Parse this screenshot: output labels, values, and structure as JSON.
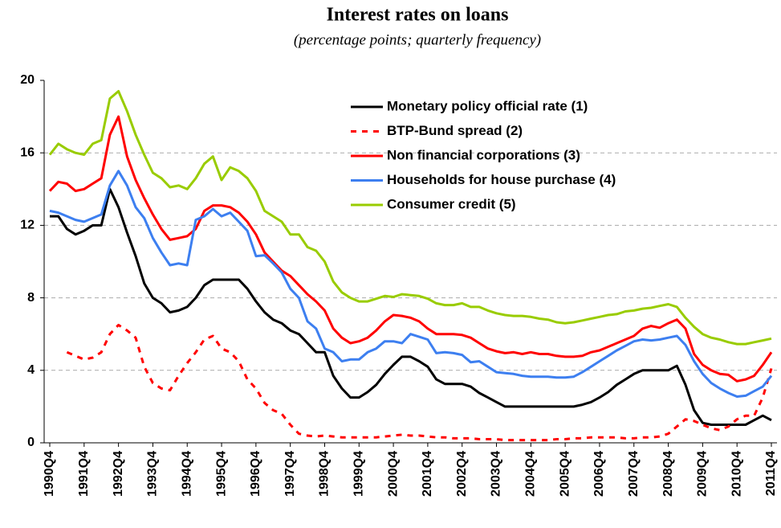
{
  "chart_data": {
    "type": "line",
    "title": "Interest rates on loans",
    "subtitle": "(percentage points; quarterly frequency)",
    "categories": [
      "1990Q4",
      null,
      null,
      null,
      "1991Q4",
      null,
      null,
      null,
      "1992Q4",
      null,
      null,
      null,
      "1993Q4",
      null,
      null,
      null,
      "1994Q4",
      null,
      null,
      null,
      "1995Q4",
      null,
      null,
      null,
      "1996Q4",
      null,
      null,
      null,
      "1997Q4",
      null,
      null,
      null,
      "1998Q4",
      null,
      null,
      null,
      "1999Q4",
      null,
      null,
      null,
      "2000Q4",
      null,
      null,
      null,
      "2001Q4",
      null,
      null,
      null,
      "2002Q4",
      null,
      null,
      null,
      "2003Q4",
      null,
      null,
      null,
      "2004Q4",
      null,
      null,
      null,
      "2005Q4",
      null,
      null,
      null,
      "2006Q4",
      null,
      null,
      null,
      "2007Q4",
      null,
      null,
      null,
      "2008Q4",
      null,
      null,
      null,
      "2009Q4",
      null,
      null,
      null,
      "2010Q4",
      null,
      null,
      null,
      "2011Q4"
    ],
    "series": [
      {
        "name": "Monetary policy official rate (1)",
        "color": "#000000",
        "dash": false,
        "values": [
          12.5,
          12.5,
          11.8,
          11.5,
          11.7,
          12,
          12,
          14,
          13,
          11.6,
          10.3,
          8.8,
          8,
          7.7,
          7.2,
          7.3,
          7.5,
          8,
          8.7,
          9,
          9,
          9,
          9,
          8.5,
          7.8,
          7.2,
          6.8,
          6.6,
          6.2,
          6,
          5.5,
          5,
          5,
          3.7,
          3,
          2.5,
          2.5,
          2.8,
          3.2,
          3.8,
          4.3,
          4.75,
          4.75,
          4.5,
          4.2,
          3.5,
          3.25,
          3.25,
          3.25,
          3.1,
          2.75,
          2.5,
          2.25,
          2,
          2,
          2,
          2,
          2,
          2,
          2,
          2,
          2,
          2.1,
          2.25,
          2.5,
          2.8,
          3.2,
          3.5,
          3.8,
          4,
          4,
          4,
          4,
          4.25,
          3.2,
          1.8,
          1.1,
          1,
          1,
          1,
          1,
          1,
          1.25,
          1.5,
          1.25
        ]
      },
      {
        "name": "BTP-Bund spread (2)",
        "color": "#ff0000",
        "dash": true,
        "values": [
          null,
          null,
          5.0,
          4.8,
          4.6,
          4.7,
          5.0,
          6.0,
          6.5,
          6.2,
          5.8,
          4.2,
          3.3,
          3.0,
          2.9,
          3.7,
          4.4,
          5.0,
          5.7,
          5.9,
          5.2,
          5.0,
          4.5,
          3.5,
          3.0,
          2.2,
          1.8,
          1.6,
          1.0,
          0.5,
          0.4,
          0.35,
          0.4,
          0.35,
          0.3,
          0.3,
          0.3,
          0.3,
          0.3,
          0.35,
          0.4,
          0.45,
          0.4,
          0.4,
          0.35,
          0.3,
          0.3,
          0.25,
          0.25,
          0.25,
          0.2,
          0.2,
          0.2,
          0.15,
          0.15,
          0.15,
          0.15,
          0.15,
          0.15,
          0.2,
          0.2,
          0.25,
          0.25,
          0.3,
          0.3,
          0.3,
          0.3,
          0.25,
          0.25,
          0.3,
          0.3,
          0.35,
          0.5,
          0.9,
          1.3,
          1.2,
          1.0,
          0.8,
          0.7,
          0.9,
          1.3,
          1.5,
          1.5,
          2.5,
          4.1
        ]
      },
      {
        "name": "Non financial corporations (3)",
        "color": "#ff0000",
        "dash": false,
        "values": [
          13.9,
          14.4,
          14.3,
          13.9,
          14,
          14.3,
          14.6,
          17,
          18,
          15.8,
          14.5,
          13.5,
          12.6,
          11.8,
          11.2,
          11.3,
          11.4,
          11.8,
          12.8,
          13.1,
          13.1,
          13,
          12.7,
          12.2,
          11.5,
          10.5,
          10,
          9.5,
          9.2,
          8.7,
          8.2,
          7.8,
          7.3,
          6.3,
          5.8,
          5.5,
          5.6,
          5.8,
          6.2,
          6.7,
          7.05,
          7,
          6.9,
          6.7,
          6.3,
          6,
          6,
          6,
          5.95,
          5.8,
          5.5,
          5.2,
          5.05,
          4.95,
          5,
          4.9,
          5,
          4.9,
          4.9,
          4.8,
          4.75,
          4.75,
          4.8,
          5,
          5.1,
          5.3,
          5.5,
          5.7,
          5.9,
          6.3,
          6.45,
          6.35,
          6.6,
          6.8,
          6.3,
          4.9,
          4.3,
          4,
          3.8,
          3.75,
          3.4,
          3.5,
          3.7,
          4.3,
          5.0
        ]
      },
      {
        "name": "Households for house purchase (4)",
        "color": "#3d7ff0",
        "dash": false,
        "values": [
          12.8,
          12.7,
          12.5,
          12.3,
          12.2,
          12.4,
          12.6,
          14.2,
          15,
          14.2,
          13,
          12.4,
          11.3,
          10.5,
          9.8,
          9.9,
          9.8,
          12.3,
          12.5,
          12.9,
          12.5,
          12.7,
          12.2,
          11.7,
          10.3,
          10.35,
          9.9,
          9.4,
          8.5,
          8,
          6.7,
          6.3,
          5.2,
          5,
          4.5,
          4.6,
          4.6,
          5,
          5.2,
          5.6,
          5.6,
          5.5,
          6,
          5.85,
          5.7,
          4.95,
          5,
          4.95,
          4.85,
          4.45,
          4.5,
          4.2,
          3.9,
          3.85,
          3.8,
          3.7,
          3.65,
          3.65,
          3.65,
          3.6,
          3.6,
          3.65,
          3.9,
          4.2,
          4.5,
          4.8,
          5.1,
          5.35,
          5.6,
          5.7,
          5.65,
          5.7,
          5.8,
          5.9,
          5.4,
          4.5,
          3.8,
          3.3,
          3,
          2.75,
          2.55,
          2.6,
          2.85,
          3.1,
          3.7
        ]
      },
      {
        "name": "Consumer credit (5)",
        "color": "#99cc00",
        "dash": false,
        "values": [
          15.9,
          16.5,
          16.2,
          16,
          15.9,
          16.5,
          16.7,
          19,
          19.4,
          18.3,
          17,
          15.9,
          14.9,
          14.6,
          14.1,
          14.2,
          14,
          14.6,
          15.4,
          15.8,
          14.5,
          15.2,
          15,
          14.6,
          13.9,
          12.8,
          12.5,
          12.2,
          11.5,
          11.5,
          10.8,
          10.6,
          10,
          8.9,
          8.3,
          8,
          7.8,
          7.8,
          7.95,
          8.1,
          8.05,
          8.2,
          8.15,
          8.1,
          7.95,
          7.7,
          7.6,
          7.6,
          7.7,
          7.5,
          7.5,
          7.3,
          7.15,
          7.05,
          7,
          7,
          6.95,
          6.85,
          6.8,
          6.65,
          6.6,
          6.65,
          6.75,
          6.85,
          6.95,
          7.05,
          7.1,
          7.25,
          7.3,
          7.4,
          7.45,
          7.55,
          7.65,
          7.5,
          6.9,
          6.4,
          6,
          5.8,
          5.7,
          5.55,
          5.45,
          5.45,
          5.55,
          5.65,
          5.75
        ]
      }
    ],
    "ylim": [
      0,
      20
    ],
    "yticks": [
      0,
      4,
      8,
      12,
      16,
      20
    ],
    "grid": true,
    "legend": "upper right"
  }
}
